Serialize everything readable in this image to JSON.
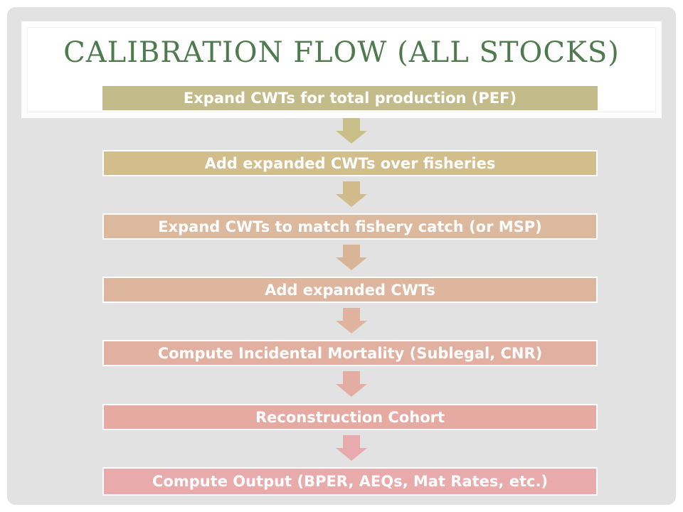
{
  "title": "CALIBRATION FLOW (ALL STOCKS)",
  "steps": [
    {
      "label": "Expand CWTs for total production (PEF)",
      "color": "#c4bb8a"
    },
    {
      "label": "Add expanded CWTs over fisheries",
      "color": "#d2bd8d"
    },
    {
      "label": "Expand CWTs to match fishery catch (or MSP)",
      "color": "#dcb89d"
    },
    {
      "label": "Add expanded CWTs",
      "color": "#deb59d"
    },
    {
      "label": "Compute Incidental Mortality (Sublegal, CNR)",
      "color": "#e2b0a0"
    },
    {
      "label": "Reconstruction Cohort",
      "color": "#e6aaa3"
    },
    {
      "label": "Compute Output (BPER, AEQs, Mat Rates, etc.)",
      "color": "#e8aaaa"
    }
  ],
  "arrow_colors": [
    "#c8c088",
    "#d1bb8a",
    "#d8b597",
    "#dfb39d",
    "#e3ada2",
    "#e8aaac"
  ]
}
